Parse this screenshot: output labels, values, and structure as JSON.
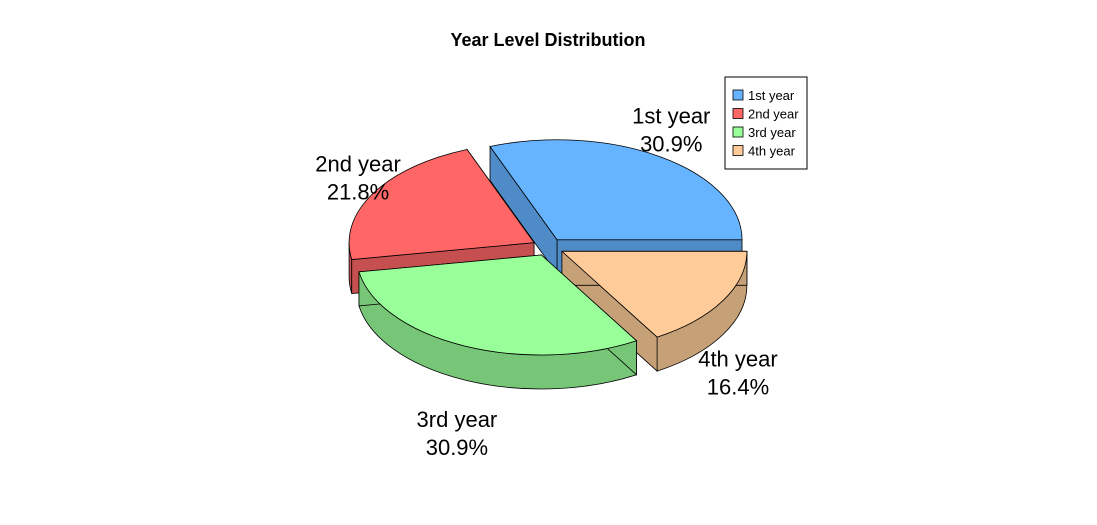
{
  "chart_data": {
    "type": "pie",
    "title": "Year Level Distribution",
    "style": "3d-exploded",
    "slices": [
      {
        "label": "1st year",
        "value": 30.9,
        "percent_label": "30.9%",
        "color": "#66b3ff",
        "side_color": "#4f8bc6"
      },
      {
        "label": "2nd year",
        "value": 21.8,
        "percent_label": "21.8%",
        "color": "#ff6666",
        "side_color": "#c64f4f"
      },
      {
        "label": "3rd year",
        "value": 30.9,
        "percent_label": "30.9%",
        "color": "#99ff99",
        "side_color": "#77c677"
      },
      {
        "label": "4th year",
        "value": 16.4,
        "percent_label": "16.4%",
        "color": "#ffcc99",
        "side_color": "#c6a077"
      }
    ],
    "legend": {
      "position": "top-right",
      "entries": [
        "1st year",
        "2nd year",
        "3rd year",
        "4th year"
      ]
    }
  }
}
